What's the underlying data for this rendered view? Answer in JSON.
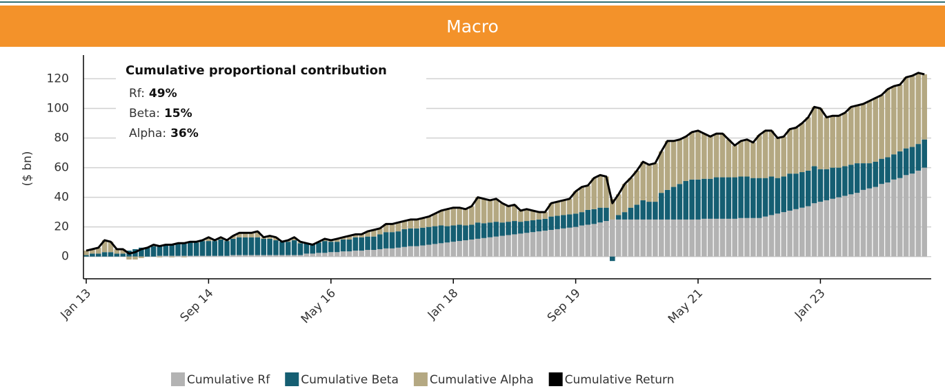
{
  "chart_data": {
    "type": "bar",
    "stacked": true,
    "title": "Macro",
    "ylabel": "($ bn)",
    "categories": [
      "Jan 13",
      null,
      null,
      null,
      null,
      null,
      null,
      null,
      null,
      null,
      null,
      null,
      null,
      null,
      null,
      null,
      null,
      null,
      null,
      null,
      "Sep 14",
      null,
      null,
      null,
      null,
      null,
      null,
      null,
      null,
      null,
      null,
      null,
      null,
      null,
      null,
      null,
      null,
      null,
      null,
      null,
      "May 16",
      null,
      null,
      null,
      null,
      null,
      null,
      null,
      null,
      null,
      null,
      null,
      null,
      null,
      null,
      null,
      null,
      null,
      null,
      null,
      "Jan 18",
      null,
      null,
      null,
      null,
      null,
      null,
      null,
      null,
      null,
      null,
      null,
      null,
      null,
      null,
      null,
      null,
      null,
      null,
      null,
      "Sep 19",
      null,
      null,
      null,
      null,
      null,
      null,
      null,
      null,
      null,
      null,
      null,
      null,
      null,
      null,
      null,
      null,
      null,
      null,
      null,
      "May 21",
      null,
      null,
      null,
      null,
      null,
      null,
      null,
      null,
      null,
      null,
      null,
      null,
      null,
      null,
      null,
      null,
      null,
      null,
      null,
      "Jan 23",
      null,
      null,
      null,
      null,
      null,
      null,
      null,
      null,
      null,
      null,
      null,
      null,
      null,
      null,
      null,
      null,
      null
    ],
    "series": [
      {
        "name": "Cumulative Rf",
        "color": "#b3b3b3",
        "values": [
          0,
          0,
          0,
          0,
          0,
          0,
          0,
          0,
          0,
          0,
          0,
          0,
          0.5,
          0.5,
          0.5,
          0.5,
          0.5,
          0.5,
          0.5,
          0.5,
          0.5,
          0.5,
          0.5,
          0.5,
          1,
          1,
          1,
          1,
          1,
          1,
          1,
          1,
          1,
          1,
          1,
          1,
          2,
          2,
          2.5,
          2.5,
          3,
          3,
          3.5,
          3.5,
          4,
          4,
          4.5,
          4.5,
          5,
          5.5,
          5.5,
          6,
          6.5,
          7,
          7,
          7.5,
          8,
          8.5,
          9,
          9.5,
          10,
          10.5,
          11,
          11.5,
          12,
          12.5,
          13,
          13.5,
          14,
          14.5,
          15,
          15.5,
          16,
          16.5,
          17,
          17.5,
          18,
          18.5,
          19,
          19.5,
          20,
          21,
          21.5,
          22,
          23,
          24,
          25,
          25,
          25,
          25,
          25,
          25,
          25,
          25,
          25,
          25,
          25,
          25,
          25,
          25,
          25,
          25.5,
          25.5,
          25.5,
          25.5,
          25.5,
          25.5,
          26,
          26,
          26,
          26,
          27,
          28,
          29,
          30,
          31,
          32,
          33,
          34,
          36,
          37,
          38,
          39,
          40,
          41,
          42,
          43,
          45,
          46,
          47,
          49,
          50,
          52,
          53,
          55,
          56,
          58,
          60
        ]
      },
      {
        "name": "Cumulative Beta",
        "color": "#155e72",
        "values": [
          1,
          2,
          2,
          3,
          3,
          2,
          2,
          4,
          5,
          6,
          6,
          7,
          7,
          7,
          8,
          8,
          9,
          9,
          9,
          10,
          10,
          10,
          11,
          10,
          11,
          12,
          12,
          12,
          12,
          11,
          11,
          10,
          9,
          9,
          10,
          8,
          7,
          6,
          7,
          8,
          7,
          7,
          8,
          8,
          9,
          9,
          9,
          9,
          10,
          11,
          11,
          11,
          12,
          12,
          12,
          12,
          12,
          12,
          12,
          11,
          11,
          11,
          10,
          10,
          11,
          10,
          10,
          10,
          9,
          9,
          9,
          8,
          8,
          8,
          8,
          8,
          9,
          9,
          9,
          9,
          9,
          9,
          10,
          10,
          10,
          9,
          -3,
          3,
          5,
          8,
          10,
          13,
          12,
          12,
          18,
          20,
          22,
          24,
          26,
          27,
          27,
          27,
          27,
          28,
          28,
          28,
          28,
          28,
          28,
          27,
          27,
          26,
          26,
          24,
          24,
          25,
          24,
          24,
          24,
          25,
          22,
          21,
          21,
          20,
          20,
          20,
          20,
          18,
          17,
          17,
          17,
          17,
          17,
          18,
          18,
          18,
          18,
          19
        ]
      },
      {
        "name": "Cumulative Alpha",
        "color": "#b4a882",
        "values": [
          3,
          3,
          4,
          8,
          7,
          3,
          3,
          -2,
          -2,
          -1,
          0,
          1,
          -0.5,
          0.5,
          -0.5,
          0.5,
          -0.5,
          0.5,
          0.5,
          0.5,
          2.5,
          0.5,
          1.5,
          0.5,
          2,
          3,
          3,
          3,
          4,
          1,
          2,
          2,
          0,
          1,
          2,
          1,
          0,
          0,
          0.5,
          1.5,
          1,
          2,
          1.5,
          2.5,
          2,
          2,
          3.5,
          4.5,
          4,
          5.5,
          5.5,
          6,
          5.5,
          6,
          6,
          6.5,
          7,
          8.5,
          10,
          11.5,
          12,
          11.5,
          11,
          12.5,
          17,
          16.5,
          15,
          15.5,
          13,
          10.5,
          11,
          7.5,
          8,
          6.5,
          5,
          4.5,
          9,
          9.5,
          10,
          10.5,
          15,
          17,
          16.5,
          21,
          22,
          21,
          14,
          14,
          19,
          20,
          23,
          26,
          25,
          26,
          28,
          33,
          31,
          30,
          30,
          32,
          33,
          30.5,
          28.5,
          29.5,
          29.5,
          25.5,
          21.5,
          24,
          25,
          24,
          29,
          32,
          31,
          27,
          27,
          30,
          31,
          33,
          36,
          40,
          41,
          35,
          35,
          35,
          36,
          39,
          39,
          40,
          42,
          43,
          43,
          46,
          46,
          45,
          48,
          48,
          48,
          44
        ]
      },
      {
        "name": "Cumulative Return",
        "color": "#000000",
        "type": "line",
        "values": [
          4,
          5,
          6,
          11,
          10,
          5,
          5,
          2,
          3,
          5,
          6,
          8,
          7,
          8,
          8,
          9,
          9,
          10,
          10,
          11,
          13,
          11,
          13,
          11,
          14,
          16,
          16,
          16,
          17,
          13,
          14,
          13,
          10,
          11,
          13,
          10,
          9,
          8,
          10,
          12,
          11,
          12,
          13,
          14,
          15,
          15,
          17,
          18,
          19,
          22,
          22,
          23,
          24,
          25,
          25,
          26,
          27,
          29,
          31,
          32,
          33,
          33,
          32,
          34,
          40,
          39,
          38,
          39,
          36,
          34,
          35,
          31,
          32,
          31,
          30,
          30,
          36,
          37,
          38,
          39,
          44,
          47,
          48,
          53,
          55,
          54,
          36,
          42,
          49,
          53,
          58,
          64,
          62,
          63,
          71,
          78,
          78,
          79,
          81,
          84,
          85,
          83,
          81,
          83,
          83,
          79,
          75,
          78,
          79,
          77,
          82,
          85,
          85,
          80,
          81,
          86,
          87,
          90,
          94,
          101,
          100,
          94,
          95,
          95,
          97,
          101,
          102,
          103,
          105,
          107,
          109,
          113,
          115,
          116,
          121,
          122,
          124,
          123
        ]
      }
    ],
    "ylim": [
      -15,
      136
    ],
    "yticks": [
      0,
      20,
      40,
      60,
      80,
      100,
      120
    ],
    "grid": true,
    "annotation": {
      "title": "Cumulative proportional contribution",
      "items": [
        {
          "label": "Rf:",
          "value": "49%"
        },
        {
          "label": "Beta:",
          "value": "15%"
        },
        {
          "label": "Alpha:",
          "value": "36%"
        }
      ]
    }
  }
}
